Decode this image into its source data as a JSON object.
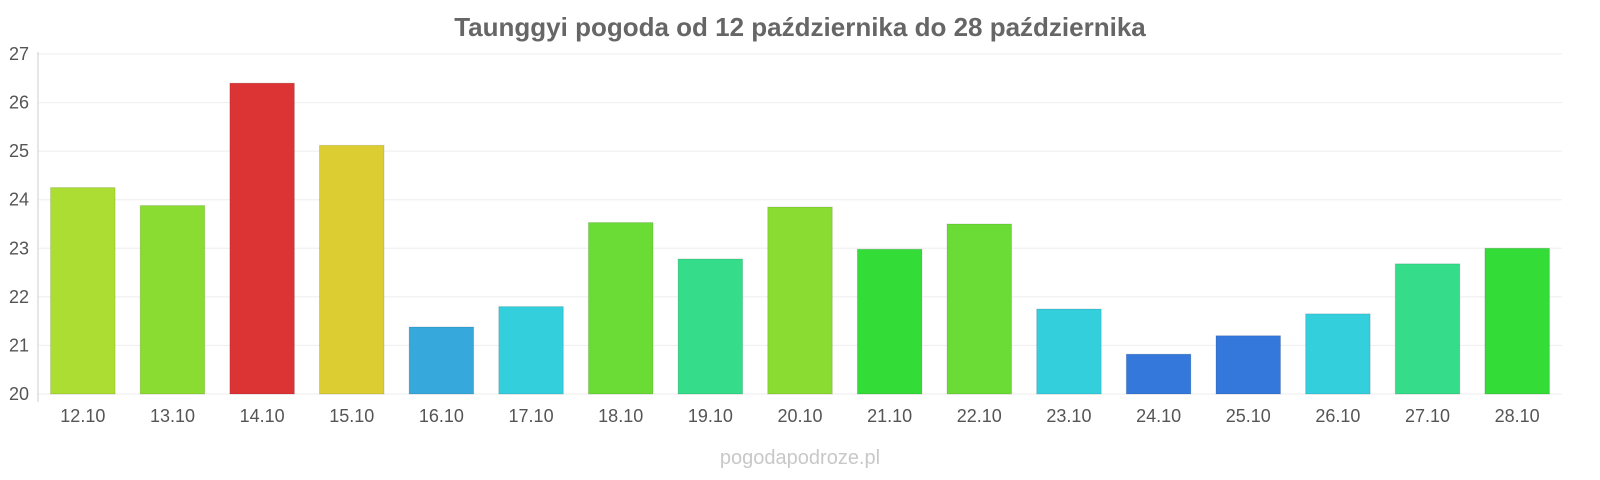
{
  "watermark": "pogodapodroze.pl",
  "chart_data": {
    "type": "bar",
    "title": "Taunggyi pogoda od 12 października do 28 października",
    "xlabel": "",
    "ylabel": "",
    "ylim": [
      20,
      27
    ],
    "yticks": [
      20,
      21,
      22,
      23,
      24,
      25,
      26,
      27
    ],
    "grid": true,
    "categories": [
      "12.10",
      "13.10",
      "14.10",
      "15.10",
      "16.10",
      "17.10",
      "18.10",
      "19.10",
      "20.10",
      "21.10",
      "22.10",
      "23.10",
      "24.10",
      "25.10",
      "26.10",
      "27.10",
      "28.10"
    ],
    "values": [
      24.25,
      23.88,
      26.4,
      25.12,
      21.38,
      21.8,
      23.53,
      22.78,
      23.85,
      22.98,
      23.5,
      21.75,
      20.82,
      21.2,
      21.65,
      22.68,
      23.0
    ],
    "colors": [
      "#acdd32",
      "#8bdc32",
      "#dc3434",
      "#dccd32",
      "#36a8dc",
      "#33cfdd",
      "#6bdc36",
      "#35dc89",
      "#8bdc32",
      "#33dc36",
      "#6bdc36",
      "#33cfdd",
      "#3578dc",
      "#3578dc",
      "#33cfdd",
      "#35dc89",
      "#33dc36"
    ]
  }
}
